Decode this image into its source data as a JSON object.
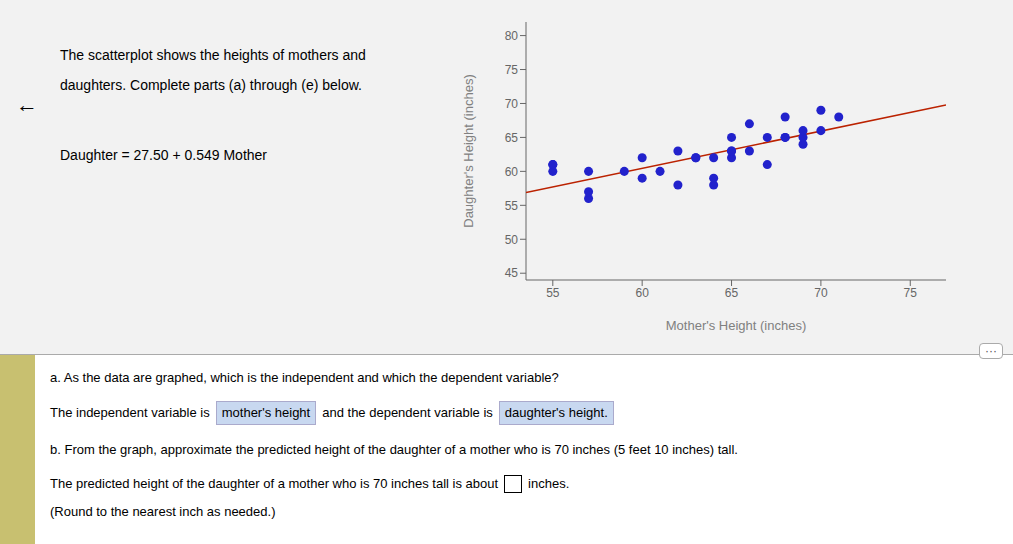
{
  "chart_data": {
    "type": "scatter",
    "title": "The scatterplot shows the heights of mothers and",
    "subtitle": "daughters. Complete parts (a) through (e) below.",
    "xlabel": "Mother's Height (inches)",
    "ylabel": "Daughter's Height (inches)",
    "xlim": [
      53.5,
      77
    ],
    "ylim": [
      44,
      82
    ],
    "xticks": [
      55,
      60,
      65,
      70,
      75
    ],
    "yticks": [
      45,
      50,
      55,
      60,
      65,
      70,
      75,
      80
    ],
    "grid": false,
    "series": [
      {
        "type": "line",
        "color": "#bb2200",
        "x": [
          53.5,
          77
        ],
        "values": [
          56.8715,
          69.773
        ]
      },
      {
        "type": "scatter",
        "color": "#2222cc",
        "x": [
          55,
          55,
          55,
          57,
          57,
          57,
          59,
          60,
          60,
          61,
          62,
          62,
          63,
          63,
          64,
          64,
          64,
          65,
          65,
          65,
          65,
          66,
          66,
          67,
          67,
          68,
          68,
          68,
          69,
          69,
          69,
          70,
          70,
          71
        ],
        "values": [
          61,
          60,
          61,
          56,
          57,
          60,
          60,
          59,
          62,
          60,
          63,
          58,
          62,
          62,
          58,
          59,
          62,
          62,
          63,
          63,
          65,
          63,
          67,
          61,
          65,
          65,
          65,
          68,
          64,
          65,
          66,
          66,
          69,
          68
        ]
      }
    ],
    "annotations": [
      "←",
      "Daughter = 27.50 + 0.549 Mother",
      "···",
      "a. As the data are graphed, which is the independent and which the dependent variable?",
      "The independent variable is",
      "mother's height",
      "and the dependent variable is",
      "daughter's height.",
      "b. From the graph, approximate the predicted height of the daughter of a mother who is 70 inches (5 feet 10 inches) tall.",
      "The predicted height of the daughter of a mother who is 70 inches tall is about",
      "inches.",
      "(Round to the nearest inch as needed.)"
    ]
  }
}
